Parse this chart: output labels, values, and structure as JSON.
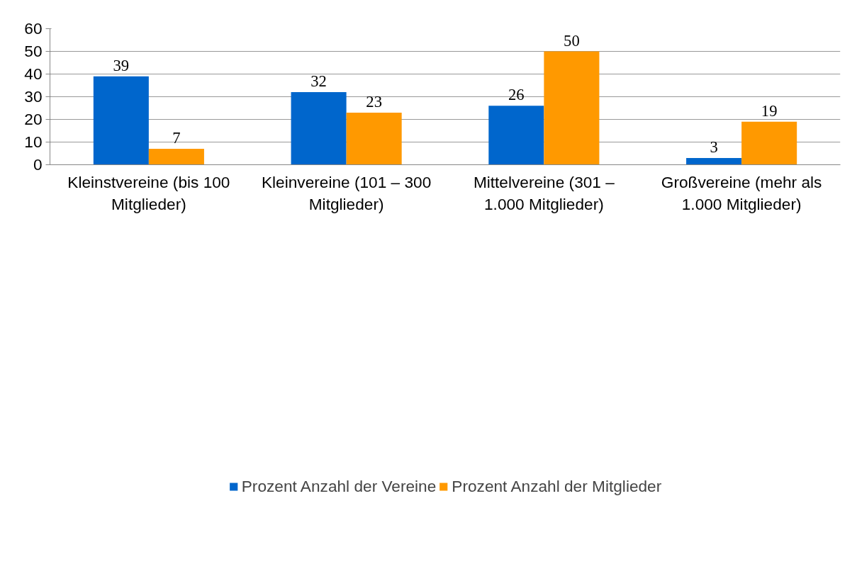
{
  "chart_data": {
    "type": "bar",
    "categories": [
      "Kleinstvereine (bis 100 Mitglieder)",
      "Kleinvereine (101 – 300 Mitglieder)",
      "Mittelvereine (301 – 1.000 Mitglieder)",
      "Großvereine (mehr als 1.000 Mitglieder)"
    ],
    "series": [
      {
        "name": "Prozent Anzahl der Vereine",
        "color": "#0066cc",
        "values": [
          39,
          32,
          26,
          3
        ]
      },
      {
        "name": "Prozent Anzahl der Mitglieder",
        "color": "#ff9900",
        "values": [
          7,
          23,
          50,
          19
        ]
      }
    ],
    "ylim": [
      0,
      60
    ],
    "yticks": [
      0,
      10,
      20,
      30,
      40,
      50,
      60
    ],
    "grid": "y",
    "legend": "bottom",
    "data_labels": true
  }
}
